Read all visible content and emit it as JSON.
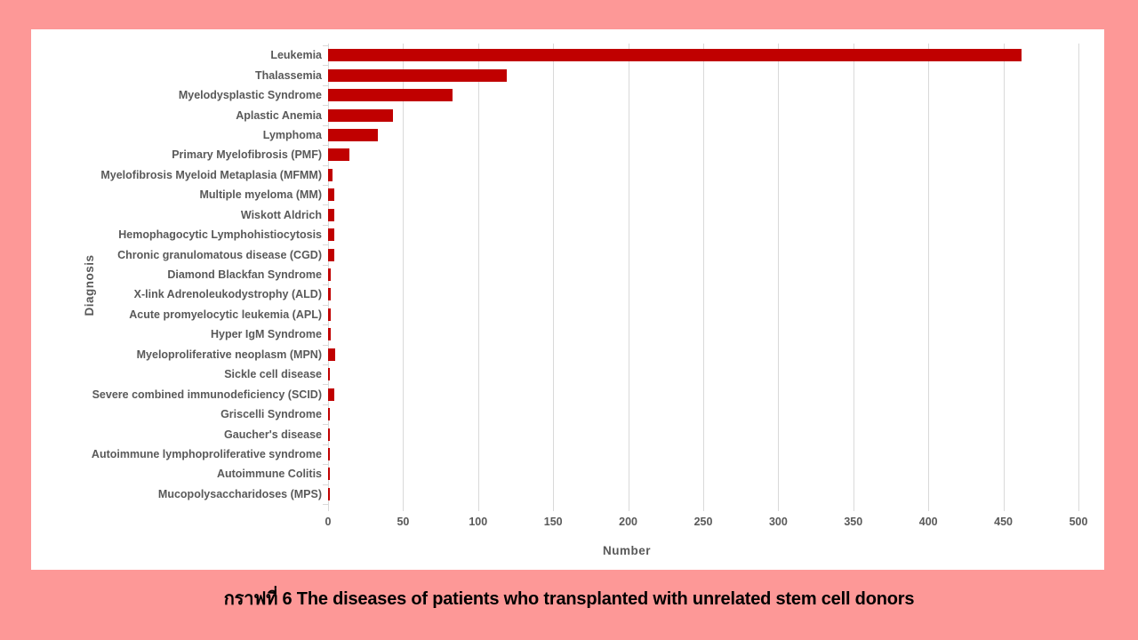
{
  "caption": {
    "text": "กราฟที่ 6 The diseases of patients who transplanted with unrelated stem cell donors"
  },
  "chart_data": {
    "type": "bar",
    "orientation": "horizontal",
    "title": "",
    "xlabel": "Number",
    "ylabel": "Diagnosis",
    "xlim": [
      0,
      500
    ],
    "x_ticks": [
      0,
      50,
      100,
      150,
      200,
      250,
      300,
      350,
      400,
      450,
      500
    ],
    "grid": true,
    "legend": false,
    "categories": [
      "Leukemia",
      "Thalassemia",
      "Myelodysplastic Syndrome",
      "Aplastic Anemia",
      "Lymphoma",
      "Primary Myelofibrosis (PMF)",
      "Myelofibrosis Myeloid Metaplasia (MFMM)",
      "Multiple myeloma (MM)",
      "Wiskott Aldrich",
      "Hemophagocytic Lymphohistiocytosis",
      "Chronic granulomatous disease (CGD)",
      "Diamond Blackfan Syndrome",
      "X-link Adrenoleukodystrophy  (ALD)",
      "Acute promyelocytic leukemia (APL)",
      "Hyper IgM Syndrome",
      "Myeloproliferative neoplasm (MPN)",
      "Sickle cell disease",
      "Severe combined immunodeficiency (SCID)",
      "Griscelli Syndrome",
      "Gaucher's disease",
      "Autoimmune lymphoproliferative syndrome",
      "Autoimmune Colitis",
      "Mucopolysaccharidoses (MPS)"
    ],
    "values": [
      462,
      119,
      83,
      43,
      33,
      14,
      3,
      4,
      4,
      4,
      4,
      2,
      2,
      2,
      2,
      5,
      1,
      4,
      1,
      1,
      1,
      1,
      1
    ]
  },
  "colors": {
    "background": "#FD9897",
    "panel": "#FFFFFF",
    "bar": "#C00000",
    "gridline": "#D9D9D9",
    "axis_text": "#595959",
    "caption_text": "#000000"
  }
}
